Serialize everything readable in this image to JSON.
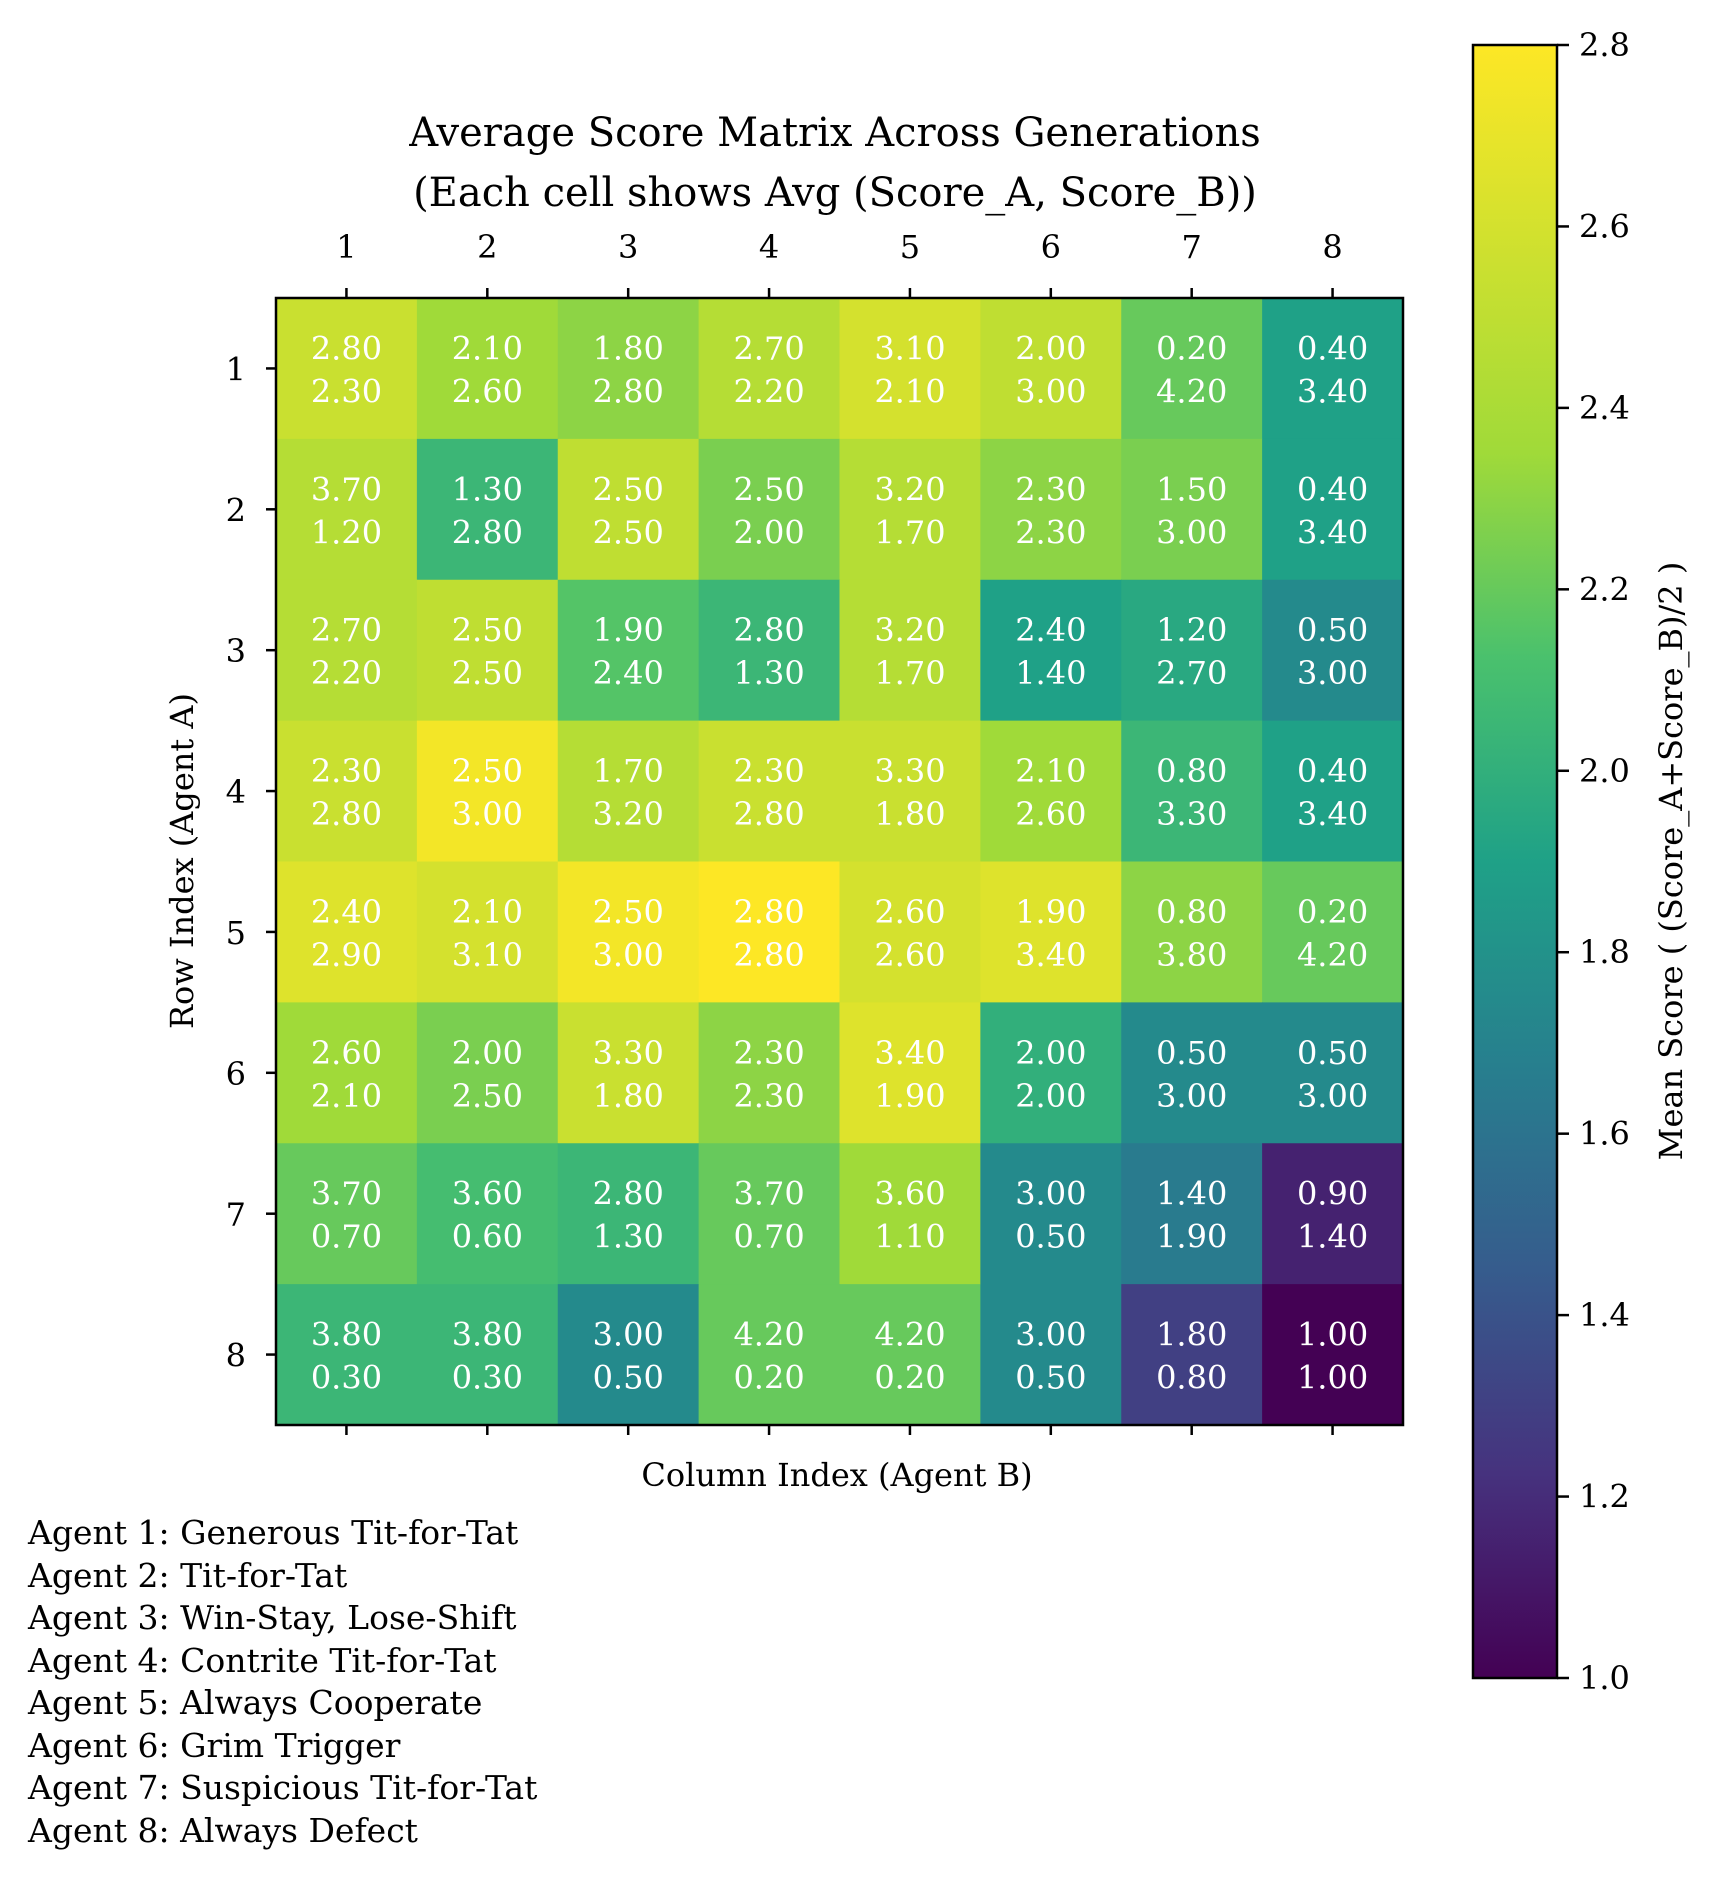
{
  "chart_data": {
    "type": "heatmap",
    "title": "Average Score Matrix Across Generations",
    "subtitle": "(Each cell shows Avg (Score_A, Score_B))",
    "xlabel": "Column Index (Agent B)",
    "ylabel": "Row Index (Agent A)",
    "x_ticks": [
      "1",
      "2",
      "3",
      "4",
      "5",
      "6",
      "7",
      "8"
    ],
    "y_ticks": [
      "1",
      "2",
      "3",
      "4",
      "5",
      "6",
      "7",
      "8"
    ],
    "score_a": [
      [
        2.8,
        2.1,
        1.8,
        2.7,
        3.1,
        2.0,
        0.2,
        0.4
      ],
      [
        3.7,
        1.3,
        2.5,
        2.5,
        3.2,
        2.3,
        1.5,
        0.4
      ],
      [
        2.7,
        2.5,
        1.9,
        2.8,
        3.2,
        2.4,
        1.2,
        0.5
      ],
      [
        2.3,
        2.5,
        1.7,
        2.3,
        3.3,
        2.1,
        0.8,
        0.4
      ],
      [
        2.4,
        2.1,
        2.5,
        2.8,
        2.6,
        1.9,
        0.8,
        0.2
      ],
      [
        2.6,
        2.0,
        3.3,
        2.3,
        3.4,
        2.0,
        0.5,
        0.5
      ],
      [
        3.7,
        3.6,
        2.8,
        3.7,
        3.6,
        3.0,
        1.4,
        0.9
      ],
      [
        3.8,
        3.8,
        3.0,
        4.2,
        4.2,
        3.0,
        1.8,
        1.0
      ]
    ],
    "score_b": [
      [
        2.3,
        2.6,
        2.8,
        2.2,
        2.1,
        3.0,
        4.2,
        3.4
      ],
      [
        1.2,
        2.8,
        2.5,
        2.0,
        1.7,
        2.3,
        3.0,
        3.4
      ],
      [
        2.2,
        2.5,
        2.4,
        1.3,
        1.7,
        1.4,
        2.7,
        3.0
      ],
      [
        2.8,
        3.0,
        3.2,
        2.8,
        1.8,
        2.6,
        3.3,
        3.4
      ],
      [
        2.9,
        3.1,
        3.0,
        2.8,
        2.6,
        3.4,
        3.8,
        4.2
      ],
      [
        2.1,
        2.5,
        1.8,
        2.3,
        1.9,
        2.0,
        3.0,
        3.0
      ],
      [
        0.7,
        0.6,
        1.3,
        0.7,
        1.1,
        0.5,
        1.9,
        1.4
      ],
      [
        0.3,
        0.3,
        0.5,
        0.2,
        0.2,
        0.5,
        0.8,
        1.0
      ]
    ],
    "colormap": "viridis",
    "colorbar": {
      "label": "Mean Score ( (Score_A+Score_B)/2 )",
      "range": [
        1.0,
        2.8
      ],
      "ticks": [
        "1.0",
        "1.2",
        "1.4",
        "1.6",
        "1.8",
        "2.0",
        "2.2",
        "2.4",
        "2.6",
        "2.8"
      ]
    },
    "legend_entries": [
      "Agent 1: Generous Tit-for-Tat",
      "Agent 2: Tit-for-Tat",
      "Agent 3: Win-Stay, Lose-Shift",
      "Agent 4: Contrite Tit-for-Tat",
      "Agent 5: Always Cooperate",
      "Agent 6: Grim Trigger",
      "Agent 7: Suspicious Tit-for-Tat",
      "Agent 8: Always Defect"
    ],
    "legend_placement": "bottom-left"
  }
}
